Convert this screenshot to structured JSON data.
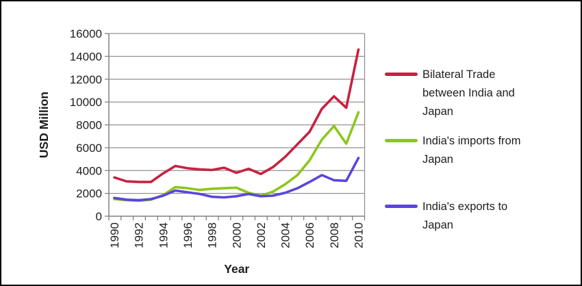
{
  "figure": {
    "background": "#ffffff",
    "border_color": "#000000",
    "text_color": "#1d1d1d",
    "gridline_color": "#919191",
    "axis_color": "#808080"
  },
  "chart_data": {
    "type": "line",
    "title": "",
    "xlabel": "Year",
    "ylabel": "USD Million",
    "ylim": [
      0,
      16000
    ],
    "ytick_step": 2000,
    "xtick_label_step": 2,
    "grid": true,
    "legend_position": "right",
    "x": [
      1990,
      1991,
      1992,
      1993,
      1994,
      1995,
      1996,
      1997,
      1998,
      1999,
      2000,
      2001,
      2002,
      2003,
      2004,
      2005,
      2006,
      2007,
      2008,
      2009,
      2010
    ],
    "series": [
      {
        "name": "Bilateral Trade between India and Japan",
        "color": "#C92040",
        "values": [
          3400,
          3050,
          3000,
          3000,
          3750,
          4400,
          4200,
          4100,
          4050,
          4250,
          3800,
          4150,
          3700,
          4300,
          5200,
          6300,
          7400,
          9400,
          10500,
          9500,
          14600
        ]
      },
      {
        "name": "India's imports from Japan",
        "color": "#8CC71C",
        "values": [
          1500,
          1400,
          1350,
          1450,
          1850,
          2550,
          2450,
          2300,
          2400,
          2450,
          2500,
          2050,
          1800,
          2150,
          2800,
          3600,
          4900,
          6700,
          7900,
          6350,
          9100
        ]
      },
      {
        "name": "India's exports to Japan",
        "color": "#5A46DB",
        "values": [
          1600,
          1450,
          1400,
          1500,
          1800,
          2250,
          2100,
          1950,
          1700,
          1650,
          1750,
          1950,
          1750,
          1800,
          2050,
          2450,
          3000,
          3600,
          3150,
          3100,
          5100
        ]
      }
    ]
  }
}
